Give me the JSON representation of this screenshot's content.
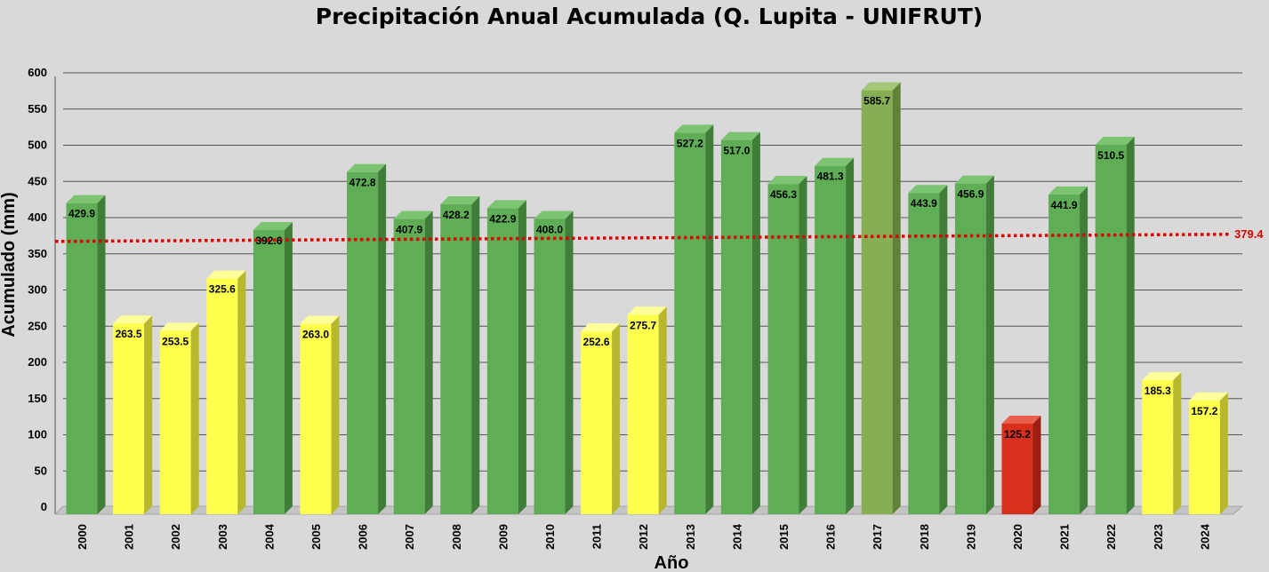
{
  "chart_data": {
    "type": "bar",
    "title": "Precipitación Anual Acumulada (Q. Lupita - UNIFRUT)",
    "xlabel": "Año",
    "ylabel": "Acumulado (mm)",
    "ylim": [
      0,
      600
    ],
    "yticks": [
      "0",
      "50",
      "100",
      "150",
      "200",
      "250",
      "300",
      "350",
      "400",
      "450",
      "500",
      "550",
      "600"
    ],
    "grid": true,
    "categories": [
      "2000",
      "2001",
      "2002",
      "2003",
      "2004",
      "2005",
      "2006",
      "2007",
      "2008",
      "2009",
      "2010",
      "2011",
      "2012",
      "2013",
      "2014",
      "2015",
      "2016",
      "2017",
      "2018",
      "2019",
      "2020",
      "2021",
      "2022",
      "2023",
      "2024"
    ],
    "values": [
      429.9,
      263.5,
      253.5,
      325.6,
      392.6,
      263.0,
      472.8,
      407.9,
      428.2,
      422.9,
      408.0,
      252.6,
      275.7,
      527.2,
      517.0,
      456.3,
      481.3,
      585.7,
      443.9,
      456.9,
      125.2,
      441.9,
      510.5,
      185.3,
      157.2
    ],
    "labels": [
      "429.9",
      "263.5",
      "253.5",
      "325.6",
      "392.6",
      "263.0",
      "472.8",
      "407.9",
      "428.2",
      "422.9",
      "408.0",
      "252.6",
      "275.7",
      "527.2",
      "517.0",
      "456.3",
      "481.3",
      "585.7",
      "443.9",
      "456.9",
      "125.2",
      "441.9",
      "510.5",
      "185.3",
      "157.2"
    ],
    "bar_colors": [
      "green",
      "yellow",
      "yellow",
      "yellow",
      "green",
      "yellow",
      "green",
      "green",
      "green",
      "green",
      "green",
      "yellow",
      "yellow",
      "green",
      "green",
      "green",
      "green",
      "olive",
      "green",
      "green",
      "red",
      "green",
      "green",
      "yellow",
      "yellow"
    ],
    "palette": {
      "green": {
        "front": "#5fae56",
        "side": "#3f7d39",
        "top": "#7cc472"
      },
      "yellow": {
        "front": "#ffff4d",
        "side": "#b8b82e",
        "top": "#ffff99"
      },
      "olive": {
        "front": "#85af52",
        "side": "#5f8237",
        "top": "#a2c776"
      },
      "red": {
        "front": "#d9301e",
        "side": "#9a1f12",
        "top": "#ea5e4c"
      }
    },
    "reference_line": {
      "value": 379.4,
      "label": "379.4",
      "color": "#e00000"
    }
  }
}
